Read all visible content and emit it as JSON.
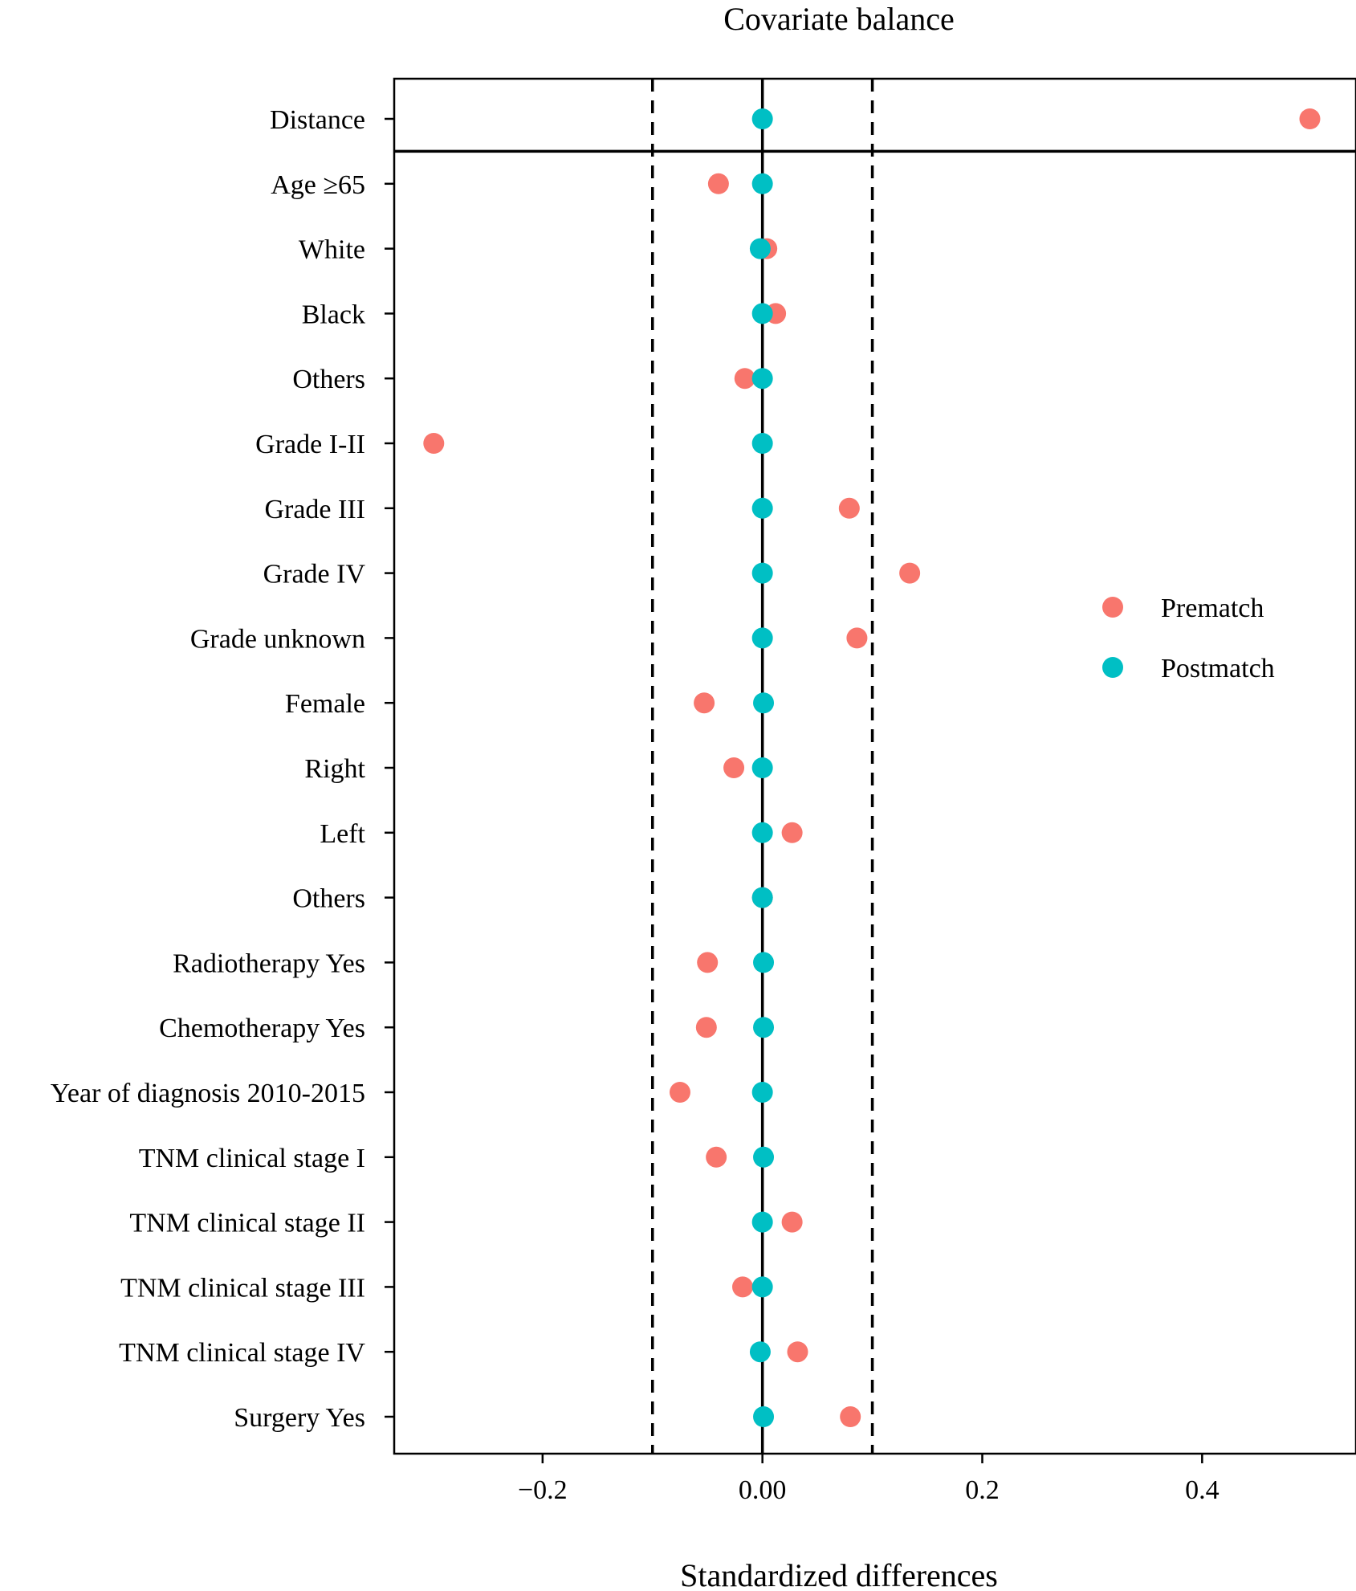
{
  "colors": {
    "prematch": "#F8766D",
    "postmatch": "#00BFC4",
    "axis": "#000000",
    "background": "#FFFFFF"
  },
  "chart_data": {
    "type": "scatter",
    "title": "Covariate balance",
    "xlabel": "Standardized differences",
    "ylabel": "",
    "xlim": [
      -0.335,
      0.54
    ],
    "x_ticks": [
      -0.2,
      0.0,
      0.2,
      0.4
    ],
    "x_tick_labels": [
      "−0.2",
      "0.00",
      "0.2",
      "0.4"
    ],
    "reference_lines": {
      "solid": 0.0,
      "dashed": [
        -0.1,
        0.1
      ]
    },
    "separator_after": "Distance",
    "legend": {
      "position": "right",
      "entries": [
        "Prematch",
        "Postmatch"
      ]
    },
    "categories": [
      "Distance",
      "Age ≥65",
      "White",
      "Black",
      "Others",
      "Grade I-II",
      "Grade III",
      "Grade IV",
      "Grade unknown",
      "Female",
      "Right",
      "Left",
      "Others",
      "Radiotherapy Yes",
      "Chemotherapy Yes",
      "Year of diagnosis 2010-2015",
      "TNM clinical stage I",
      "TNM clinical stage II",
      "TNM clinical stage III",
      "TNM clinical stage IV",
      "Surgery Yes"
    ],
    "series": [
      {
        "name": "Prematch",
        "values": [
          0.498,
          -0.04,
          0.004,
          0.012,
          -0.016,
          -0.299,
          0.079,
          0.134,
          0.086,
          -0.053,
          -0.026,
          0.027,
          0.0,
          -0.05,
          -0.051,
          -0.075,
          -0.042,
          0.027,
          -0.018,
          0.032,
          0.08
        ]
      },
      {
        "name": "Postmatch",
        "values": [
          0.0,
          0.0,
          -0.002,
          0.0,
          0.0,
          0.0,
          0.0,
          0.0,
          0.0,
          0.001,
          0.0,
          0.0,
          0.0,
          0.001,
          0.001,
          0.0,
          0.001,
          0.0,
          0.0,
          -0.002,
          0.001
        ]
      }
    ]
  }
}
